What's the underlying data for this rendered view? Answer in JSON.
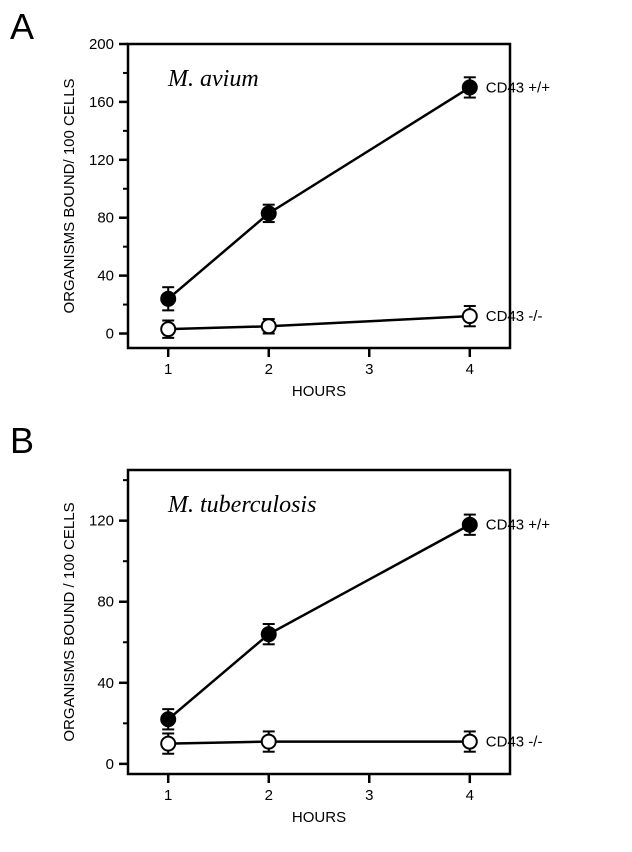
{
  "panel_labels": {
    "A": "A",
    "B": "B"
  },
  "panelA": {
    "type": "line",
    "title_label": "M. avium",
    "title_fontstyle": "italic",
    "title_fontsize": 24,
    "xlabel": "HOURS",
    "ylabel": "ORGANISMS BOUND/ 100 CELLS",
    "label_fontsize": 15,
    "xlim": [
      0.6,
      4.4
    ],
    "ylim": [
      -10,
      200
    ],
    "xticks": [
      1,
      2,
      3,
      4
    ],
    "yticks": [
      0,
      40,
      80,
      120,
      160,
      200
    ],
    "yminor": [
      20,
      60,
      100,
      140,
      180
    ],
    "series": [
      {
        "name": "CD43 +/+",
        "label": "CD43 +/+",
        "marker": "filled-circle",
        "fill": "#000000",
        "stroke": "#000000",
        "x": [
          1,
          2,
          4
        ],
        "y": [
          24,
          83,
          170
        ],
        "err": [
          8,
          6,
          7
        ]
      },
      {
        "name": "CD43 -/-",
        "label": "CD43 -/-",
        "marker": "open-circle",
        "fill": "#ffffff",
        "stroke": "#000000",
        "x": [
          1,
          2,
          4
        ],
        "y": [
          3,
          5,
          12
        ],
        "err": [
          6,
          5,
          7
        ]
      }
    ],
    "colors": {
      "axis": "#000000",
      "text": "#000000",
      "bg": "#ffffff"
    },
    "line_width": 2.5,
    "marker_radius": 7
  },
  "panelB": {
    "type": "line",
    "title_label": "M. tuberculosis",
    "title_fontstyle": "italic",
    "title_fontsize": 24,
    "xlabel": "HOURS",
    "ylabel": "ORGANISMS BOUND / 100 CELLS",
    "label_fontsize": 15,
    "xlim": [
      0.6,
      4.4
    ],
    "ylim": [
      -5,
      145
    ],
    "xticks": [
      1,
      2,
      3,
      4
    ],
    "yticks": [
      0,
      40,
      80,
      120
    ],
    "yminor": [
      20,
      60,
      100,
      140
    ],
    "series": [
      {
        "name": "CD43 +/+",
        "label": "CD43 +/+",
        "marker": "filled-circle",
        "fill": "#000000",
        "stroke": "#000000",
        "x": [
          1,
          2,
          4
        ],
        "y": [
          22,
          64,
          118
        ],
        "err": [
          5,
          5,
          5
        ]
      },
      {
        "name": "CD43 -/-",
        "label": "CD43 -/-",
        "marker": "open-circle",
        "fill": "#ffffff",
        "stroke": "#000000",
        "x": [
          1,
          2,
          4
        ],
        "y": [
          10,
          11,
          11
        ],
        "err": [
          5,
          5,
          5
        ]
      }
    ],
    "colors": {
      "axis": "#000000",
      "text": "#000000",
      "bg": "#ffffff"
    },
    "line_width": 2.5,
    "marker_radius": 7
  }
}
